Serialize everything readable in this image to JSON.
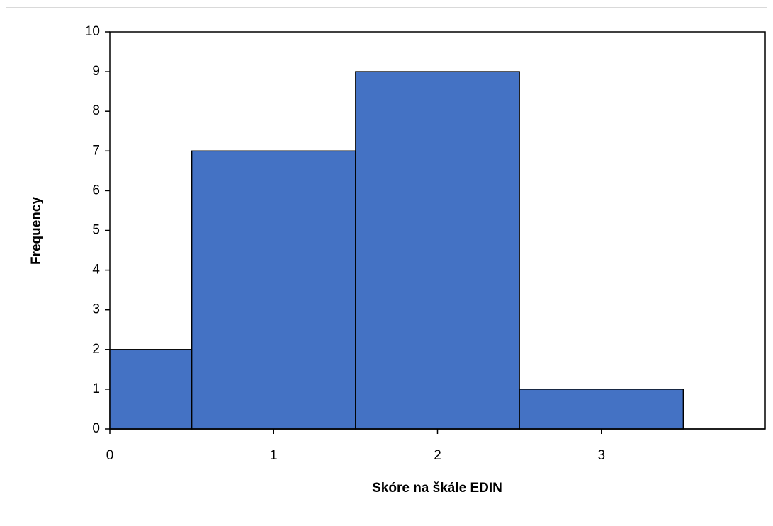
{
  "chart_data": {
    "type": "histogram",
    "bins": [
      0,
      0.5,
      1.5,
      2.5,
      3.5
    ],
    "values": [
      2,
      7,
      9,
      1
    ],
    "color": "#4472c4",
    "xlabel": "Skóre na škále EDIN",
    "ylabel": "Frequency",
    "xlim": [
      0,
      4
    ],
    "xticks": [
      0,
      1,
      2,
      3
    ],
    "ylim": [
      0,
      10
    ],
    "yticks": [
      0,
      1,
      2,
      3,
      4,
      5,
      6,
      7,
      8,
      9,
      10
    ]
  }
}
